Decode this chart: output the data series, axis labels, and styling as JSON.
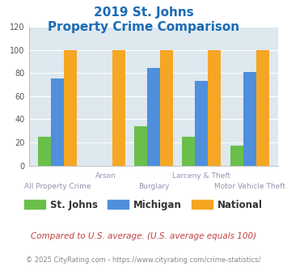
{
  "title_line1": "2019 St. Johns",
  "title_line2": "Property Crime Comparison",
  "categories": [
    "All Property Crime",
    "Arson",
    "Burglary",
    "Larceny & Theft",
    "Motor Vehicle Theft"
  ],
  "st_johns": [
    25,
    0,
    34,
    25,
    17
  ],
  "michigan": [
    75,
    0,
    84,
    73,
    81
  ],
  "national": [
    100,
    100,
    100,
    100,
    100
  ],
  "color_st_johns": "#6abf4b",
  "color_michigan": "#4f8fdb",
  "color_national": "#f5a623",
  "ylim": [
    0,
    120
  ],
  "yticks": [
    0,
    20,
    40,
    60,
    80,
    100,
    120
  ],
  "legend_labels": [
    "St. Johns",
    "Michigan",
    "National"
  ],
  "footnote1": "Compared to U.S. average. (U.S. average equals 100)",
  "footnote2_prefix": "© 2025 CityRating.com - ",
  "footnote2_url": "https://www.cityrating.com/crime-statistics/",
  "bg_color": "#dde8ef",
  "title_color": "#1a6bb5",
  "xticklabel_color": "#9b8faf",
  "footnote1_color": "#c04040",
  "footnote2_color": "#888888",
  "footnote2_url_color": "#4488cc"
}
